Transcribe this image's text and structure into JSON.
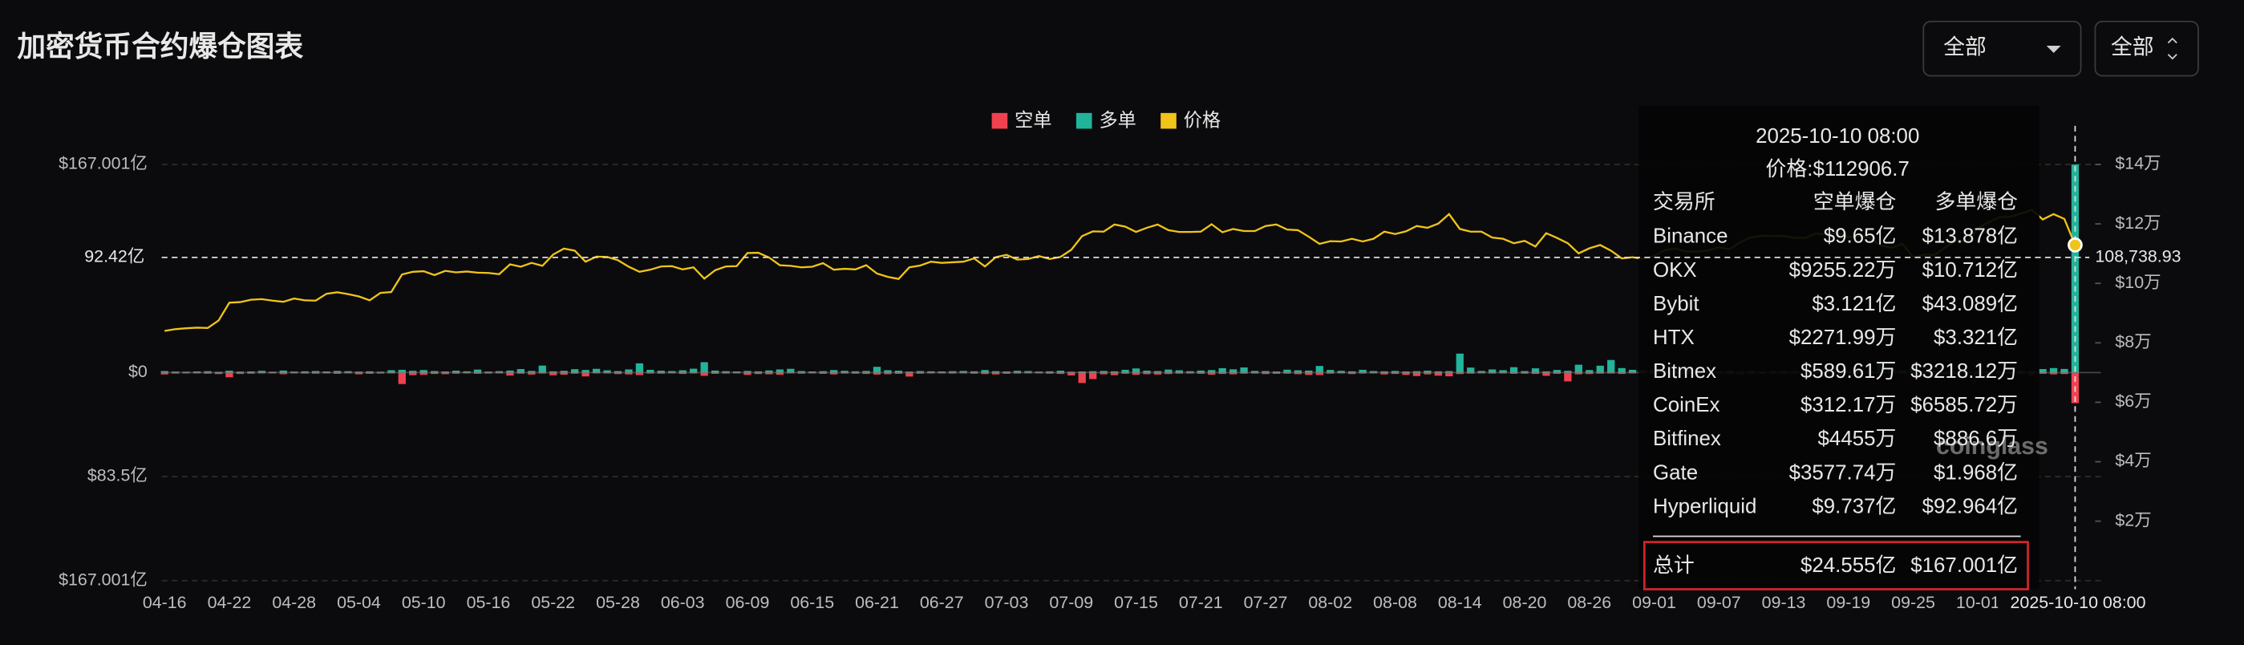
{
  "header": {
    "title": "加密货币合约爆仓图表",
    "dropdowns": [
      "全部",
      "全部"
    ]
  },
  "chart_data": {
    "type": "bar",
    "categories": [
      "04-16",
      null,
      null,
      null,
      null,
      null,
      "04-22",
      null,
      null,
      null,
      null,
      null,
      "04-28",
      null,
      null,
      null,
      null,
      null,
      "05-04",
      null,
      null,
      null,
      null,
      null,
      "05-10",
      null,
      null,
      null,
      null,
      null,
      "05-16",
      null,
      null,
      null,
      null,
      null,
      "05-22",
      null,
      null,
      null,
      null,
      null,
      "05-28",
      null,
      null,
      null,
      null,
      null,
      "06-03",
      null,
      null,
      null,
      null,
      null,
      "06-09",
      null,
      null,
      null,
      null,
      null,
      "06-15",
      null,
      null,
      null,
      null,
      null,
      "06-21",
      null,
      null,
      null,
      null,
      null,
      "06-27",
      null,
      null,
      null,
      null,
      null,
      "07-03",
      null,
      null,
      null,
      null,
      null,
      "07-09",
      null,
      null,
      null,
      null,
      null,
      "07-15",
      null,
      null,
      null,
      null,
      null,
      "07-21",
      null,
      null,
      null,
      null,
      null,
      "07-27",
      null,
      null,
      null,
      null,
      null,
      "08-02",
      null,
      null,
      null,
      null,
      null,
      "08-08",
      null,
      null,
      null,
      null,
      null,
      "08-14",
      null,
      null,
      null,
      null,
      null,
      "08-20",
      null,
      null,
      null,
      null,
      null,
      "08-26",
      null,
      null,
      null,
      null,
      null,
      "09-01",
      null,
      null,
      null,
      null,
      null,
      "09-07",
      null,
      null,
      null,
      null,
      null,
      "09-13",
      null,
      null,
      null,
      null,
      null,
      "09-19",
      null,
      null,
      null,
      null,
      null,
      "09-25",
      null,
      null,
      null,
      null,
      null,
      "10-01",
      null,
      null,
      null,
      null,
      null,
      null,
      null,
      null,
      null
    ],
    "series": [
      {
        "name": "空单",
        "type": "bar",
        "color": "#f0414f",
        "values": [
          -1.5,
          -0.8,
          -0.6,
          -0.4,
          -0.9,
          -1.2,
          -3.8,
          -1.1,
          -0.9,
          -0.7,
          -0.5,
          -1.3,
          -0.6,
          -0.8,
          -0.9,
          -0.7,
          -1.0,
          -0.6,
          -1.4,
          -1.0,
          -0.8,
          -0.5,
          -9.2,
          -2.1,
          -1.8,
          -1.1,
          -1.3,
          -0.9,
          -0.6,
          -1.0,
          -0.8,
          -0.7,
          -2.4,
          -0.9,
          -1.6,
          -0.8,
          -2.2,
          -1.7,
          -0.9,
          -3.1,
          -0.6,
          -0.7,
          -1.2,
          -1.5,
          -2.0,
          -0.8,
          -0.9,
          -0.6,
          -1.1,
          -0.7,
          -2.6,
          -1.0,
          -0.8,
          -0.5,
          -1.9,
          -1.2,
          -1.4,
          -1.8,
          -0.7,
          -0.9,
          -0.6,
          -1.0,
          -1.5,
          -0.8,
          -0.9,
          -1.1,
          -1.6,
          -1.3,
          -1.0,
          -3.2,
          -0.9,
          -0.7,
          -0.6,
          -0.8,
          -0.5,
          -0.9,
          -1.2,
          -1.5,
          -1.0,
          -0.8,
          -0.6,
          -0.7,
          -0.9,
          -1.1,
          -2.3,
          -8.4,
          -5.2,
          -1.4,
          -2.1,
          -1.0,
          -1.8,
          -1.3,
          -1.6,
          -1.2,
          -0.9,
          -0.8,
          -1.0,
          -1.7,
          -1.1,
          -1.4,
          -0.9,
          -0.8,
          -1.2,
          -1.0,
          -0.9,
          -1.3,
          -1.9,
          -2.0,
          -0.9,
          -0.7,
          -1.2,
          -0.8,
          -0.7,
          -1.5,
          -1.1,
          -1.9,
          -2.8,
          -1.4,
          -2.5,
          -3.0,
          -1.2,
          -0.9,
          -0.6,
          -0.8,
          -0.7,
          -1.0,
          -0.9,
          -1.1,
          -2.6,
          -1.0,
          -7.1,
          -1.4,
          -1.2,
          -0.9,
          -0.8,
          -1.1,
          -0.7,
          -0.6,
          -1.0,
          -1.3,
          -0.9,
          -0.8,
          -0.7,
          -0.6,
          -0.8,
          -1.1,
          -1.5,
          -1.4,
          -1.0,
          -0.9,
          -0.8,
          -0.7,
          -0.9,
          -1.2,
          -1.0,
          -1.1,
          -0.8,
          -0.7,
          -0.6,
          -0.9,
          -1.1,
          -0.8,
          -1.3,
          -0.7,
          -0.6,
          -1.2,
          -1.5,
          -1.1,
          -2.9,
          -2.4,
          -1.8,
          -1.3,
          -1.1,
          -2.0,
          -1.0,
          -1.4,
          -1.2,
          -24.555
        ]
      },
      {
        "name": "多单",
        "type": "bar",
        "color": "#22b39b",
        "values": [
          1.2,
          0.8,
          0.7,
          0.9,
          1.1,
          0.6,
          1.5,
          0.8,
          0.9,
          1.4,
          0.7,
          1.6,
          0.8,
          1.0,
          1.2,
          0.9,
          1.3,
          1.1,
          0.8,
          1.0,
          0.7,
          1.9,
          2.2,
          1.4,
          2.0,
          1.2,
          0.9,
          1.5,
          1.0,
          2.4,
          0.8,
          1.1,
          1.6,
          2.8,
          1.3,
          5.6,
          1.0,
          1.4,
          2.7,
          2.1,
          3.0,
          1.8,
          1.2,
          2.5,
          7.4,
          2.2,
          1.5,
          1.2,
          1.8,
          3.1,
          8.3,
          1.6,
          1.1,
          0.9,
          1.3,
          1.0,
          1.7,
          2.5,
          3.0,
          1.2,
          0.9,
          1.1,
          2.0,
          1.4,
          1.0,
          1.3,
          4.6,
          1.9,
          1.5,
          0.8,
          1.2,
          1.0,
          0.9,
          1.1,
          1.3,
          1.0,
          2.0,
          1.1,
          0.9,
          1.4,
          1.2,
          0.8,
          1.0,
          1.5,
          0.7,
          0.9,
          1.1,
          1.3,
          1.0,
          2.2,
          3.3,
          1.5,
          1.2,
          2.4,
          1.8,
          1.1,
          1.6,
          2.0,
          3.5,
          2.6,
          4.1,
          1.3,
          1.2,
          0.9,
          2.3,
          1.8,
          1.6,
          5.3,
          2.1,
          1.4,
          1.0,
          2.2,
          1.2,
          1.0,
          1.3,
          0.9,
          1.1,
          1.5,
          1.0,
          1.2,
          15.2,
          4.0,
          1.3,
          2.5,
          1.9,
          4.3,
          1.2,
          3.4,
          1.0,
          2.1,
          1.4,
          6.3,
          2.0,
          5.5,
          10.1,
          3.6,
          2.2,
          1.8,
          2.5,
          1.6,
          1.2,
          2.7,
          1.4,
          1.1,
          0.9,
          1.3,
          1.0,
          1.2,
          0.8,
          1.1,
          1.0,
          0.9,
          1.4,
          1.2,
          1.6,
          1.0,
          1.3,
          1.1,
          0.9,
          8.5,
          2.6,
          1.5,
          3.9,
          1.4,
          1.1,
          0.8,
          1.0,
          1.2,
          1.1,
          0.9,
          1.3,
          1.0,
          1.4,
          1.2,
          2.8,
          3.6,
          2.9,
          167.001
        ]
      },
      {
        "name": "价格",
        "type": "line",
        "axis": "y2",
        "color": "#f0c419",
        "values": [
          84000,
          84600,
          84900,
          85100,
          85000,
          87500,
          93500,
          93700,
          94500,
          94700,
          94200,
          93800,
          94900,
          94300,
          94200,
          96500,
          97000,
          96400,
          95600,
          94300,
          96800,
          97100,
          103000,
          103900,
          104100,
          102800,
          104200,
          103700,
          104000,
          103600,
          103500,
          103100,
          106400,
          105600,
          106900,
          105900,
          109700,
          111700,
          111000,
          107300,
          109000,
          108900,
          107800,
          105600,
          103900,
          104600,
          105700,
          105800,
          104700,
          105400,
          101600,
          104400,
          105700,
          105800,
          110200,
          110300,
          108700,
          106100,
          105900,
          105400,
          105600,
          106800,
          104600,
          104900,
          104700,
          106100,
          103300,
          102200,
          101500,
          105400,
          106000,
          107300,
          106900,
          107100,
          107300,
          108400,
          105700,
          108800,
          109600,
          108000,
          108200,
          109200,
          108200,
          108900,
          111300,
          115900,
          117500,
          117400,
          119800,
          119100,
          117300,
          118700,
          119800,
          117900,
          117300,
          117300,
          117400,
          119900,
          117200,
          118300,
          117600,
          117600,
          119300,
          119800,
          118100,
          117900,
          115700,
          113300,
          114200,
          114100,
          115000,
          114100,
          115000,
          117400,
          116600,
          117500,
          119300,
          118700,
          120100,
          123300,
          118300,
          117400,
          117400,
          115400,
          115000,
          113500,
          114300,
          112400,
          116900,
          115300,
          113500,
          110100,
          111800,
          112900,
          111000,
          108400,
          108800,
          108200,
          109200,
          111200,
          111700,
          110700,
          110700,
          111100,
          112100,
          111500,
          113900,
          115500,
          116000,
          115900,
          116000,
          115300,
          115300,
          116800,
          116400,
          117000,
          115600,
          115800,
          115300,
          112700,
          112000,
          113300,
          108900,
          109600,
          109600,
          112200,
          114300,
          114000,
          118600,
          120600,
          122300,
          122400,
          123500,
          124700,
          121500,
          123300,
          121700,
          112906.7
        ]
      }
    ],
    "ylim": [
      -167.001,
      167.001
    ],
    "yticks": [
      {
        "value": 167.001,
        "label": "$167.001亿"
      },
      {
        "value": 0,
        "label": "$0"
      },
      {
        "value": -83.5,
        "label": "$83.5亿"
      },
      {
        "value": -167.001,
        "label": "$167.001亿"
      }
    ],
    "y2lim": [
      0,
      140000
    ],
    "y2ticks": [
      {
        "value": 140000,
        "label": "$14万"
      },
      {
        "value": 120000,
        "label": "$12万"
      },
      {
        "value": 100000,
        "label": "$10万"
      },
      {
        "value": 80000,
        "label": "$8万"
      },
      {
        "value": 60000,
        "label": "$6万"
      },
      {
        "value": 40000,
        "label": "$4万"
      },
      {
        "value": 20000,
        "label": "$2万"
      }
    ],
    "grid": true,
    "legend": "top",
    "crosshair": {
      "y": {
        "value": 92.42,
        "label": "92.42亿"
      },
      "y2": {
        "value": 108738.93,
        "label": "108,738.93"
      }
    }
  },
  "tooltip": {
    "title": "2025-10-10 08:00",
    "price": "价格:$112906.7",
    "headers": [
      "交易所",
      "空单爆仓",
      "多单爆仓"
    ],
    "rows": [
      [
        "Binance",
        "$9.65亿",
        "$13.878亿"
      ],
      [
        "OKX",
        "$9255.22万",
        "$10.712亿"
      ],
      [
        "Bybit",
        "$3.121亿",
        "$43.089亿"
      ],
      [
        "HTX",
        "$2271.99万",
        "$3.321亿"
      ],
      [
        "Bitmex",
        "$589.61万",
        "$3218.12万"
      ],
      [
        "CoinEx",
        "$312.17万",
        "$6585.72万"
      ],
      [
        "Bitfinex",
        "$4455万",
        "$886.6万"
      ],
      [
        "Gate",
        "$3577.74万",
        "$1.968亿"
      ],
      [
        "Hyperliquid",
        "$9.737亿",
        "$92.964亿"
      ]
    ],
    "total": [
      "总计",
      "$24.555亿",
      "$167.001亿"
    ]
  },
  "watermark": "coinglass"
}
